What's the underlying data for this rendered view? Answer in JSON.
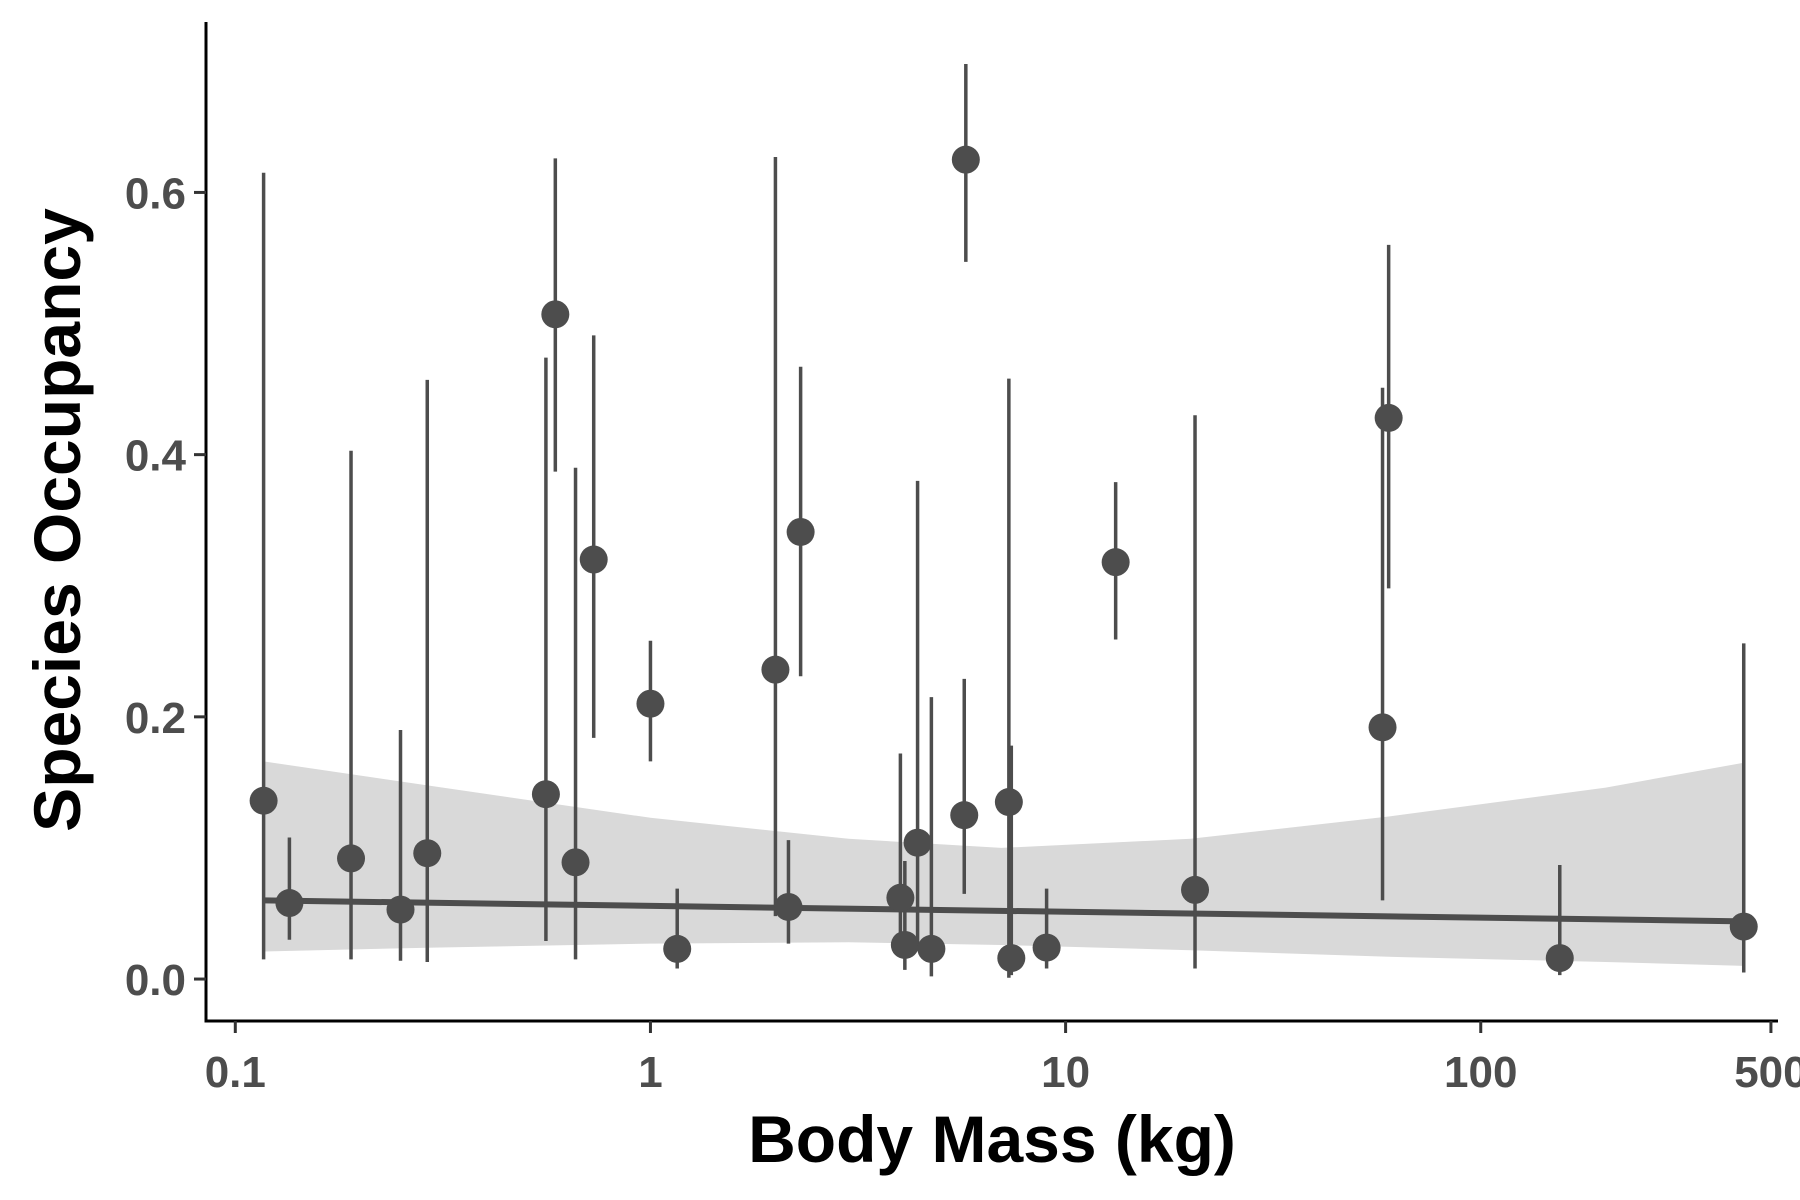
{
  "chart_data": {
    "type": "scatter",
    "title": "",
    "xlabel": "Body Mass (kg)",
    "ylabel": "Species Occupancy",
    "x_scale": "log10",
    "xlim": [
      0.085,
      520
    ],
    "ylim": [
      -0.032,
      0.73
    ],
    "x_ticks": [
      0.1,
      1,
      10,
      100,
      500
    ],
    "x_tick_labels": [
      "0.1",
      "1",
      "10",
      "100",
      "500"
    ],
    "y_ticks": [
      0.0,
      0.2,
      0.4,
      0.6
    ],
    "y_tick_labels": [
      "0.0",
      "0.2",
      "0.4",
      "0.6"
    ],
    "grid": false,
    "legend": "none",
    "point_color": "#4d4d4d",
    "band_color": "#d9d9d9",
    "points": [
      {
        "x": 0.117,
        "y": 0.136,
        "lo": 0.015,
        "hi": 0.615
      },
      {
        "x": 0.135,
        "y": 0.058,
        "lo": 0.03,
        "hi": 0.108
      },
      {
        "x": 0.19,
        "y": 0.092,
        "lo": 0.015,
        "hi": 0.403
      },
      {
        "x": 0.25,
        "y": 0.053,
        "lo": 0.014,
        "hi": 0.19
      },
      {
        "x": 0.29,
        "y": 0.096,
        "lo": 0.013,
        "hi": 0.457
      },
      {
        "x": 0.56,
        "y": 0.141,
        "lo": 0.029,
        "hi": 0.474
      },
      {
        "x": 0.59,
        "y": 0.507,
        "lo": 0.387,
        "hi": 0.626
      },
      {
        "x": 0.66,
        "y": 0.089,
        "lo": 0.015,
        "hi": 0.39
      },
      {
        "x": 0.73,
        "y": 0.32,
        "lo": 0.184,
        "hi": 0.491
      },
      {
        "x": 1.0,
        "y": 0.21,
        "lo": 0.166,
        "hi": 0.258
      },
      {
        "x": 1.16,
        "y": 0.023,
        "lo": 0.008,
        "hi": 0.069
      },
      {
        "x": 2.0,
        "y": 0.236,
        "lo": 0.048,
        "hi": 0.627
      },
      {
        "x": 2.15,
        "y": 0.055,
        "lo": 0.027,
        "hi": 0.106
      },
      {
        "x": 2.3,
        "y": 0.341,
        "lo": 0.231,
        "hi": 0.467
      },
      {
        "x": 4.0,
        "y": 0.062,
        "lo": 0.02,
        "hi": 0.172
      },
      {
        "x": 4.1,
        "y": 0.026,
        "lo": 0.007,
        "hi": 0.09
      },
      {
        "x": 4.4,
        "y": 0.104,
        "lo": 0.025,
        "hi": 0.38
      },
      {
        "x": 4.75,
        "y": 0.023,
        "lo": 0.002,
        "hi": 0.215
      },
      {
        "x": 5.7,
        "y": 0.125,
        "lo": 0.065,
        "hi": 0.229
      },
      {
        "x": 5.75,
        "y": 0.625,
        "lo": 0.547,
        "hi": 0.698
      },
      {
        "x": 7.3,
        "y": 0.135,
        "lo": 0.001,
        "hi": 0.458
      },
      {
        "x": 7.4,
        "y": 0.016,
        "lo": 0.003,
        "hi": 0.178
      },
      {
        "x": 9.0,
        "y": 0.024,
        "lo": 0.008,
        "hi": 0.069
      },
      {
        "x": 13.2,
        "y": 0.318,
        "lo": 0.259,
        "hi": 0.379
      },
      {
        "x": 20.5,
        "y": 0.068,
        "lo": 0.008,
        "hi": 0.43
      },
      {
        "x": 58,
        "y": 0.192,
        "lo": 0.06,
        "hi": 0.451
      },
      {
        "x": 60,
        "y": 0.428,
        "lo": 0.298,
        "hi": 0.56
      },
      {
        "x": 155,
        "y": 0.016,
        "lo": 0.003,
        "hi": 0.087
      },
      {
        "x": 430,
        "y": 0.04,
        "lo": 0.005,
        "hi": 0.256
      }
    ],
    "fit_line": {
      "x": [
        0.117,
        430
      ],
      "y": [
        0.06,
        0.044
      ]
    },
    "confidence_band": {
      "x": [
        0.117,
        0.3,
        1.0,
        3.0,
        7.0,
        20,
        60,
        200,
        430
      ],
      "upper": [
        0.166,
        0.147,
        0.123,
        0.107,
        0.1,
        0.107,
        0.124,
        0.146,
        0.165
      ],
      "lower": [
        0.021,
        0.024,
        0.027,
        0.028,
        0.026,
        0.022,
        0.017,
        0.013,
        0.01
      ]
    }
  }
}
